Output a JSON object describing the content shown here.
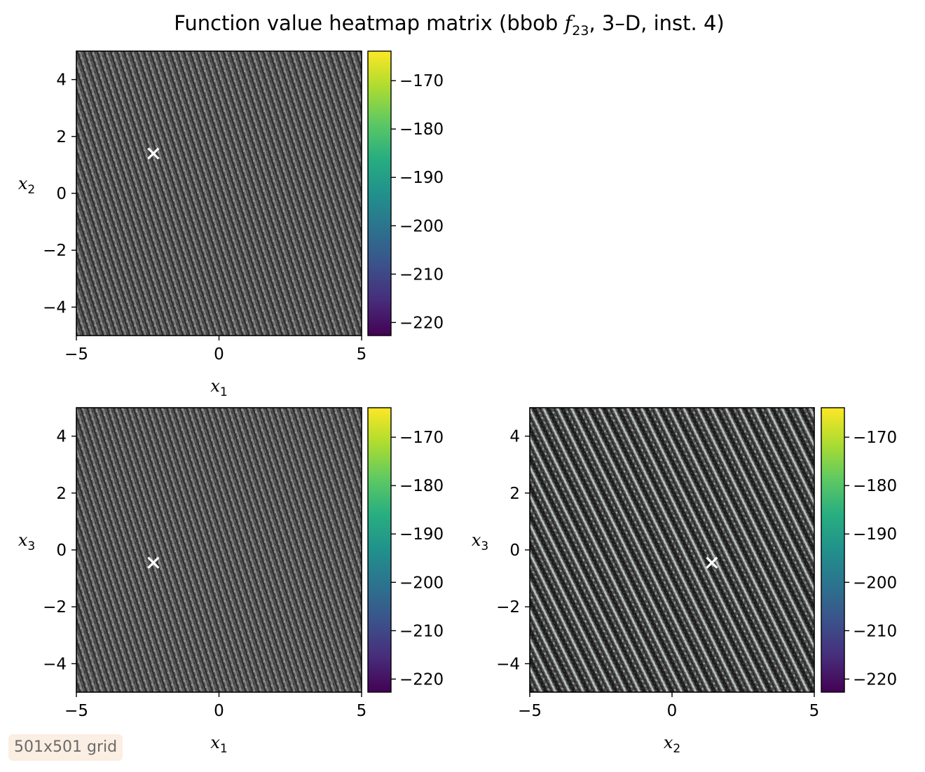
{
  "figure": {
    "title_prefix": "Function value heatmap matrix (bbob ",
    "title_func": "f",
    "title_sub": "23",
    "title_suffix": ", 3–D, inst. 4)",
    "grid_note": "501x501 grid"
  },
  "chart_data": [
    {
      "type": "heatmap",
      "panel": "x1-x2",
      "xlabel": "x",
      "xlabel_sub": "1",
      "ylabel": "x",
      "ylabel_sub": "2",
      "xlim": [
        -5,
        5
      ],
      "ylim": [
        -5,
        5
      ],
      "xticks": [
        -5,
        0,
        5
      ],
      "yticks": [
        -4,
        -2,
        0,
        2,
        4
      ],
      "colorbar": {
        "colormap": "viridis",
        "range": [
          -222.7,
          -163.9
        ],
        "ticks": [
          -170,
          -180,
          -190,
          -200,
          -210,
          -220
        ]
      },
      "texture": "fine",
      "optimum_marker": {
        "x": -2.3,
        "y": 1.4,
        "symbol": "x",
        "color": "#ffffff"
      }
    },
    {
      "type": "heatmap",
      "panel": "x1-x3",
      "xlabel": "x",
      "xlabel_sub": "1",
      "ylabel": "x",
      "ylabel_sub": "3",
      "xlim": [
        -5,
        5
      ],
      "ylim": [
        -5,
        5
      ],
      "xticks": [
        -5,
        0,
        5
      ],
      "yticks": [
        -4,
        -2,
        0,
        2,
        4
      ],
      "colorbar": {
        "colormap": "viridis",
        "range": [
          -222.7,
          -163.9
        ],
        "ticks": [
          -170,
          -180,
          -190,
          -200,
          -210,
          -220
        ]
      },
      "texture": "fine",
      "optimum_marker": {
        "x": -2.3,
        "y": -0.45,
        "symbol": "x",
        "color": "#ffffff"
      }
    },
    {
      "type": "heatmap",
      "panel": "x2-x3",
      "xlabel": "x",
      "xlabel_sub": "2",
      "ylabel": "x",
      "ylabel_sub": "3",
      "xlim": [
        -5,
        5
      ],
      "ylim": [
        -5,
        5
      ],
      "xticks": [
        -5,
        0,
        5
      ],
      "yticks": [
        -4,
        -2,
        0,
        2,
        4
      ],
      "colorbar": {
        "colormap": "viridis",
        "range": [
          -222.7,
          -163.9
        ],
        "ticks": [
          -170,
          -180,
          -190,
          -200,
          -210,
          -220
        ]
      },
      "texture": "diagonal-stripes",
      "optimum_marker": {
        "x": 1.4,
        "y": -0.45,
        "symbol": "x",
        "color": "#ffffff"
      }
    }
  ]
}
